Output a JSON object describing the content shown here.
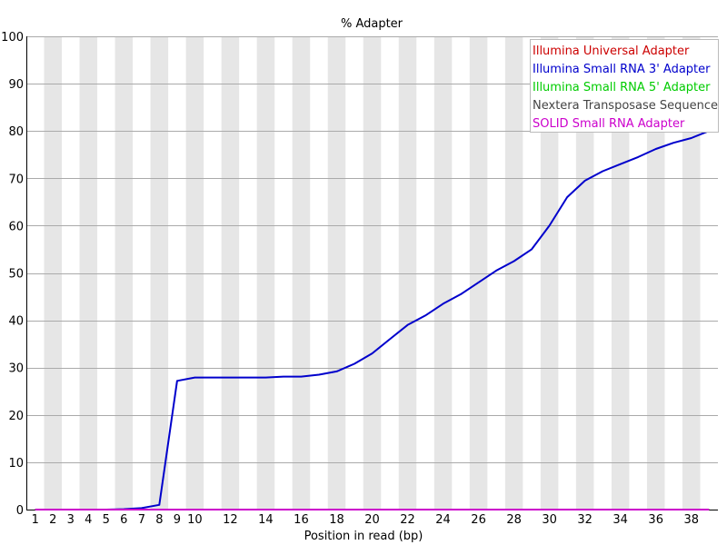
{
  "chart_data": {
    "type": "line",
    "title": "% Adapter",
    "xlabel": "Position in read (bp)",
    "ylabel": "",
    "ylim": [
      0,
      100
    ],
    "yticks": [
      0,
      10,
      20,
      30,
      40,
      50,
      60,
      70,
      80,
      90,
      100
    ],
    "x": [
      1,
      2,
      3,
      4,
      5,
      6,
      7,
      8,
      9,
      10,
      11,
      12,
      13,
      14,
      15,
      16,
      17,
      18,
      19,
      20,
      21,
      22,
      23,
      24,
      25,
      26,
      27,
      28,
      29,
      30,
      31,
      32,
      33,
      34,
      35,
      36,
      37,
      38,
      39
    ],
    "xtick_labels": [
      "1",
      "2",
      "3",
      "4",
      "5",
      "6",
      "7",
      "8",
      "9",
      "10",
      "12",
      "14",
      "16",
      "18",
      "20",
      "22",
      "24",
      "26",
      "28",
      "30",
      "32",
      "34",
      "36",
      "38"
    ],
    "grid": true,
    "legend_position": "top-right",
    "series": [
      {
        "name": "Illumina Universal Adapter",
        "color": "#cc0000",
        "values": [
          0,
          0,
          0,
          0,
          0,
          0,
          0,
          0,
          0,
          0,
          0,
          0,
          0,
          0,
          0,
          0,
          0,
          0,
          0,
          0,
          0,
          0,
          0,
          0,
          0,
          0,
          0,
          0,
          0,
          0,
          0,
          0,
          0,
          0,
          0,
          0,
          0,
          0,
          0
        ]
      },
      {
        "name": "Illumina Small RNA 3' Adapter",
        "color": "#0000cc",
        "values": [
          0,
          0,
          0,
          0,
          0,
          0.1,
          0.3,
          1.0,
          27.2,
          27.9,
          27.9,
          27.9,
          27.9,
          27.9,
          28.1,
          28.1,
          28.5,
          29.2,
          30.8,
          33.0,
          36.0,
          39.0,
          41.0,
          43.5,
          45.5,
          48.0,
          50.5,
          52.5,
          55.0,
          60.0,
          66.0,
          69.5,
          71.5,
          73.0,
          74.5,
          76.2,
          77.5,
          78.5,
          80.0
        ]
      },
      {
        "name": "Illumina Small RNA 5' Adapter",
        "color": "#00cc00",
        "values": [
          0,
          0,
          0,
          0,
          0,
          0,
          0,
          0,
          0,
          0,
          0,
          0,
          0,
          0,
          0,
          0,
          0,
          0,
          0,
          0,
          0,
          0,
          0,
          0,
          0,
          0,
          0,
          0,
          0,
          0,
          0,
          0,
          0,
          0,
          0,
          0,
          0,
          0,
          0
        ]
      },
      {
        "name": "Nextera Transposase Sequence",
        "color": "#444444",
        "values": [
          0,
          0,
          0,
          0,
          0,
          0,
          0,
          0,
          0,
          0,
          0,
          0,
          0,
          0,
          0,
          0,
          0,
          0,
          0,
          0,
          0,
          0,
          0,
          0,
          0,
          0,
          0,
          0,
          0,
          0,
          0,
          0,
          0,
          0,
          0,
          0,
          0,
          0,
          0
        ]
      },
      {
        "name": "SOLID Small RNA Adapter",
        "color": "#cc00cc",
        "values": [
          0,
          0,
          0,
          0,
          0,
          0,
          0,
          0,
          0,
          0,
          0,
          0,
          0,
          0,
          0,
          0,
          0,
          0,
          0,
          0,
          0,
          0,
          0,
          0,
          0,
          0,
          0,
          0,
          0,
          0,
          0,
          0,
          0,
          0,
          0,
          0,
          0,
          0,
          0
        ]
      }
    ]
  }
}
